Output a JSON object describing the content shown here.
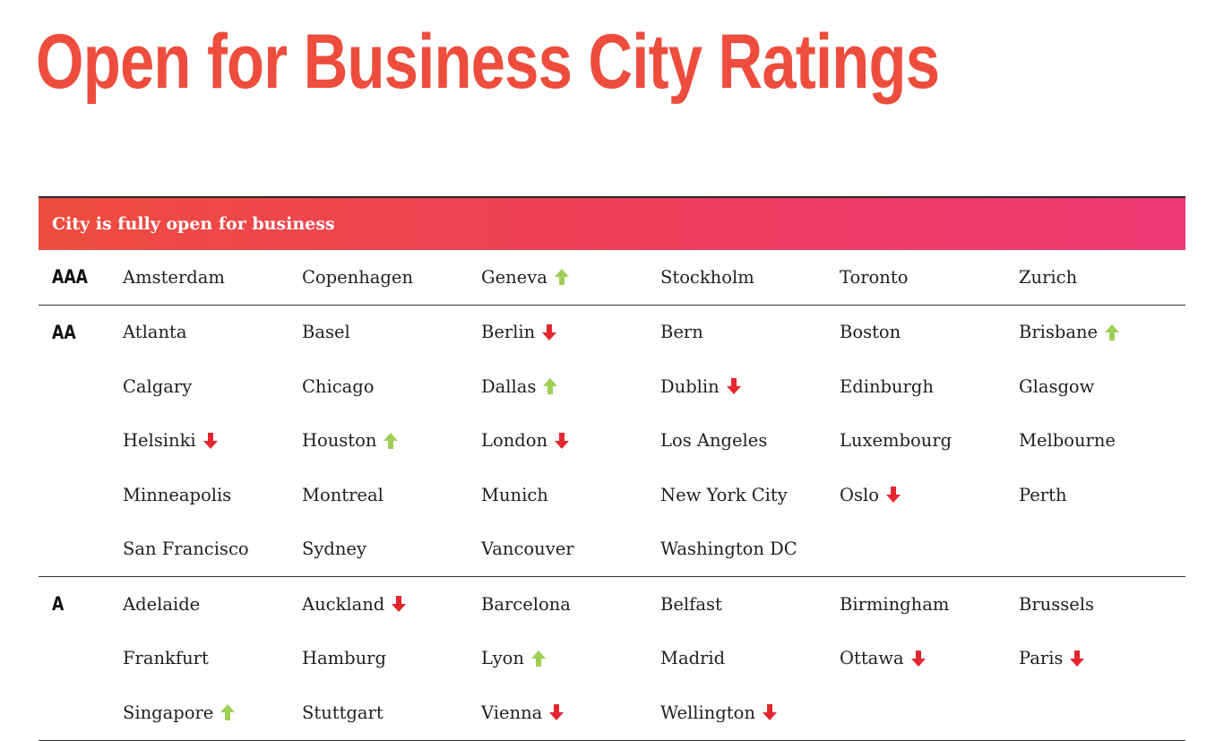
{
  "title": "Open for Business City Ratings",
  "section_banner": "City is fully open for business",
  "colors": {
    "title": "#ee4d3d",
    "banner_start": "#ee4c3f",
    "banner_end": "#ee3875",
    "arrow_up": "#9fcf55",
    "arrow_down": "#e4262f"
  },
  "tiers": [
    {
      "rating": "AAA",
      "cities": [
        {
          "name": "Amsterdam",
          "trend": "none"
        },
        {
          "name": "Copenhagen",
          "trend": "none"
        },
        {
          "name": "Geneva",
          "trend": "up"
        },
        {
          "name": "Stockholm",
          "trend": "none"
        },
        {
          "name": "Toronto",
          "trend": "none"
        },
        {
          "name": "Zurich",
          "trend": "none"
        }
      ]
    },
    {
      "rating": "AA",
      "cities": [
        {
          "name": "Atlanta",
          "trend": "none"
        },
        {
          "name": "Basel",
          "trend": "none"
        },
        {
          "name": "Berlin",
          "trend": "down"
        },
        {
          "name": "Bern",
          "trend": "none"
        },
        {
          "name": "Boston",
          "trend": "none"
        },
        {
          "name": "Brisbane",
          "trend": "up"
        },
        {
          "name": "Calgary",
          "trend": "none"
        },
        {
          "name": "Chicago",
          "trend": "none"
        },
        {
          "name": "Dallas",
          "trend": "up"
        },
        {
          "name": "Dublin",
          "trend": "down"
        },
        {
          "name": "Edinburgh",
          "trend": "none"
        },
        {
          "name": "Glasgow",
          "trend": "none"
        },
        {
          "name": "Helsinki",
          "trend": "down"
        },
        {
          "name": "Houston",
          "trend": "up"
        },
        {
          "name": "London",
          "trend": "down"
        },
        {
          "name": "Los Angeles",
          "trend": "none"
        },
        {
          "name": "Luxembourg",
          "trend": "none"
        },
        {
          "name": "Melbourne",
          "trend": "none"
        },
        {
          "name": "Minneapolis",
          "trend": "none"
        },
        {
          "name": "Montreal",
          "trend": "none"
        },
        {
          "name": "Munich",
          "trend": "none"
        },
        {
          "name": "New York City",
          "trend": "none"
        },
        {
          "name": "Oslo",
          "trend": "down"
        },
        {
          "name": "Perth",
          "trend": "none"
        },
        {
          "name": "San Francisco",
          "trend": "none"
        },
        {
          "name": "Sydney",
          "trend": "none"
        },
        {
          "name": "Vancouver",
          "trend": "none"
        },
        {
          "name": "Washington DC",
          "trend": "none"
        }
      ]
    },
    {
      "rating": "A",
      "cities": [
        {
          "name": "Adelaide",
          "trend": "none"
        },
        {
          "name": "Auckland",
          "trend": "down"
        },
        {
          "name": "Barcelona",
          "trend": "none"
        },
        {
          "name": "Belfast",
          "trend": "none"
        },
        {
          "name": "Birmingham",
          "trend": "none"
        },
        {
          "name": "Brussels",
          "trend": "none"
        },
        {
          "name": "Frankfurt",
          "trend": "none"
        },
        {
          "name": "Hamburg",
          "trend": "none"
        },
        {
          "name": "Lyon",
          "trend": "up"
        },
        {
          "name": "Madrid",
          "trend": "none"
        },
        {
          "name": "Ottawa",
          "trend": "down"
        },
        {
          "name": "Paris",
          "trend": "down"
        },
        {
          "name": "Singapore",
          "trend": "up"
        },
        {
          "name": "Stuttgart",
          "trend": "none"
        },
        {
          "name": "Vienna",
          "trend": "down"
        },
        {
          "name": "Wellington",
          "trend": "down"
        }
      ]
    }
  ]
}
